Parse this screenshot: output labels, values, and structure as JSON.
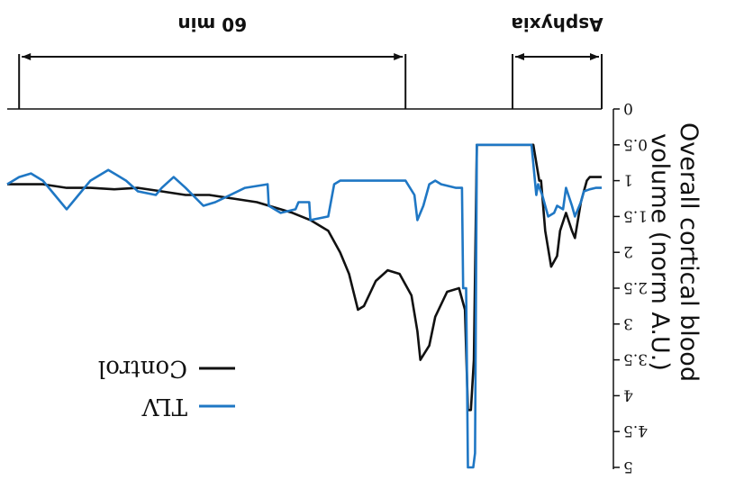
{
  "chart_data": {
    "type": "line",
    "orientation": "rotated-180",
    "ylabel": "Overall cortical blood volume (norm A.U.)",
    "yticks": [
      {
        "value": 0,
        "label": "0"
      },
      {
        "value": 0.5,
        "label": "0.5"
      },
      {
        "value": 1,
        "label": "1"
      },
      {
        "value": 1.5,
        "label": "1.5"
      },
      {
        "value": 2,
        "label": "2"
      },
      {
        "value": 2.5,
        "label": "2.5"
      },
      {
        "value": 3,
        "label": "3"
      },
      {
        "value": 3.5,
        "label": "3.5"
      },
      {
        "value": 4,
        "label": "4"
      },
      {
        "value": 4.5,
        "label": "4.5"
      },
      {
        "value": 5,
        "label": "5"
      }
    ],
    "ylim": [
      0,
      5
    ],
    "xlim": [
      0,
      100
    ],
    "grid": false,
    "legend_position": "bottom-left",
    "periods": [
      {
        "label": "Asphyxia",
        "start": 0,
        "end": 15
      },
      {
        "label": "60 min",
        "start": 33,
        "end": 98
      }
    ],
    "series": [
      {
        "name": "TLV",
        "color": "#1f77c4",
        "points": [
          [
            0,
            1.1
          ],
          [
            1,
            1.1
          ],
          [
            2,
            1.12
          ],
          [
            3,
            1.15
          ],
          [
            3.5,
            1.3
          ],
          [
            4.5,
            1.5
          ],
          [
            5,
            1.35
          ],
          [
            6,
            1.1
          ],
          [
            6.5,
            1.4
          ],
          [
            7.5,
            1.35
          ],
          [
            8,
            1.45
          ],
          [
            9,
            1.5
          ],
          [
            10,
            1.2
          ],
          [
            10.7,
            1.05
          ],
          [
            11,
            1.2
          ],
          [
            11.8,
            0.5
          ],
          [
            15,
            0.5
          ],
          [
            21,
            0.5
          ],
          [
            21.3,
            4.8
          ],
          [
            21.6,
            5.0
          ],
          [
            22.5,
            5.0
          ],
          [
            22.8,
            2.5
          ],
          [
            23.3,
            2.5
          ],
          [
            23.5,
            1.1
          ],
          [
            24.5,
            1.1
          ],
          [
            27,
            1.05
          ],
          [
            28,
            1.0
          ],
          [
            29,
            1.05
          ],
          [
            30,
            1.35
          ],
          [
            31,
            1.55
          ],
          [
            31.5,
            1.2
          ],
          [
            33,
            1.0
          ],
          [
            44,
            1.0
          ],
          [
            45,
            1.05
          ],
          [
            46,
            1.5
          ],
          [
            49,
            1.55
          ],
          [
            49.2,
            1.3
          ],
          [
            51,
            1.3
          ],
          [
            51.5,
            1.4
          ],
          [
            54,
            1.45
          ],
          [
            56,
            1.35
          ],
          [
            56.2,
            1.05
          ],
          [
            60,
            1.1
          ],
          [
            65,
            1.3
          ],
          [
            67,
            1.35
          ],
          [
            70,
            1.1
          ],
          [
            72,
            0.95
          ],
          [
            74,
            1.1
          ],
          [
            75,
            1.2
          ],
          [
            78,
            1.15
          ],
          [
            80,
            1.0
          ],
          [
            83,
            0.85
          ],
          [
            86,
            1.0
          ],
          [
            88,
            1.2
          ],
          [
            90,
            1.4
          ],
          [
            92,
            1.2
          ],
          [
            94,
            1.0
          ],
          [
            96,
            0.9
          ],
          [
            98,
            0.95
          ],
          [
            100,
            1.05
          ]
        ]
      },
      {
        "name": "Control",
        "color": "#111111",
        "points": [
          [
            0,
            0.95
          ],
          [
            1,
            0.95
          ],
          [
            2,
            0.95
          ],
          [
            2.5,
            1.0
          ],
          [
            3.5,
            1.3
          ],
          [
            4.5,
            1.8
          ],
          [
            5,
            1.7
          ],
          [
            6,
            1.45
          ],
          [
            7,
            1.7
          ],
          [
            7.5,
            2.05
          ],
          [
            8.5,
            2.2
          ],
          [
            9.5,
            1.7
          ],
          [
            10.2,
            1.0
          ],
          [
            10.5,
            1.0
          ],
          [
            11.5,
            0.5
          ],
          [
            21,
            0.5
          ],
          [
            21.5,
            3.5
          ],
          [
            22,
            4.2
          ],
          [
            22.5,
            4.2
          ],
          [
            23,
            2.8
          ],
          [
            24,
            2.5
          ],
          [
            26,
            2.55
          ],
          [
            28,
            2.9
          ],
          [
            29,
            3.3
          ],
          [
            30.5,
            3.5
          ],
          [
            31,
            3.1
          ],
          [
            32,
            2.6
          ],
          [
            34,
            2.3
          ],
          [
            36,
            2.25
          ],
          [
            38,
            2.4
          ],
          [
            40,
            2.75
          ],
          [
            41,
            2.8
          ],
          [
            42.5,
            2.3
          ],
          [
            44,
            2.0
          ],
          [
            46,
            1.7
          ],
          [
            49,
            1.55
          ],
          [
            52,
            1.45
          ],
          [
            54,
            1.4
          ],
          [
            58,
            1.3
          ],
          [
            62,
            1.25
          ],
          [
            66,
            1.2
          ],
          [
            70,
            1.2
          ],
          [
            74,
            1.15
          ],
          [
            78,
            1.1
          ],
          [
            82,
            1.12
          ],
          [
            86,
            1.1
          ],
          [
            90,
            1.1
          ],
          [
            94,
            1.05
          ],
          [
            98,
            1.05
          ],
          [
            100,
            1.05
          ]
        ]
      }
    ]
  }
}
